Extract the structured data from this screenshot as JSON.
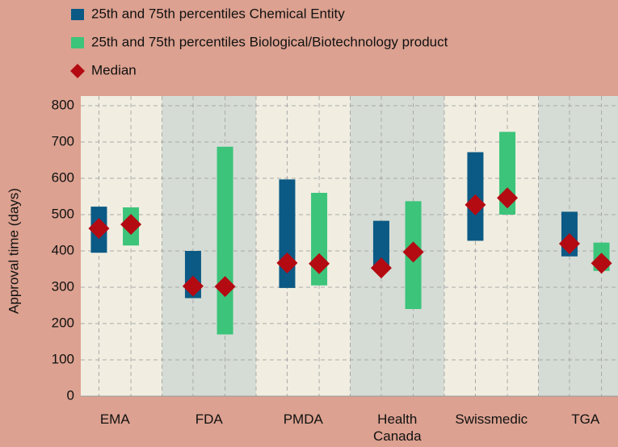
{
  "chart_data": {
    "type": "range_bar",
    "y_label": "Approval time (days)",
    "categories": [
      "EMA",
      "FDA",
      "PMDA",
      "Health Canada",
      "Swissmedic",
      "TGA"
    ],
    "series": [
      {
        "name": "25th and 75th percentiles Chemical Entity",
        "color": "#0b5a85",
        "low": [
          395,
          270,
          298,
          355,
          428,
          385
        ],
        "high": [
          522,
          400,
          597,
          483,
          672,
          508
        ],
        "median": [
          462,
          303,
          367,
          353,
          527,
          420
        ]
      },
      {
        "name": "25th and 75th percentiles Biological/Biotechnology product",
        "color": "#3cc47a",
        "low": [
          415,
          170,
          305,
          240,
          500,
          345
        ],
        "high": [
          520,
          687,
          560,
          537,
          728,
          423
        ],
        "median": [
          473,
          302,
          365,
          397,
          546,
          366
        ]
      }
    ],
    "median_name": "Median",
    "median_color": "#b40a12",
    "ylim": [
      0,
      800
    ],
    "yticks": [
      0,
      100,
      200,
      300,
      400,
      500,
      600,
      700,
      800
    ],
    "grid": true
  }
}
